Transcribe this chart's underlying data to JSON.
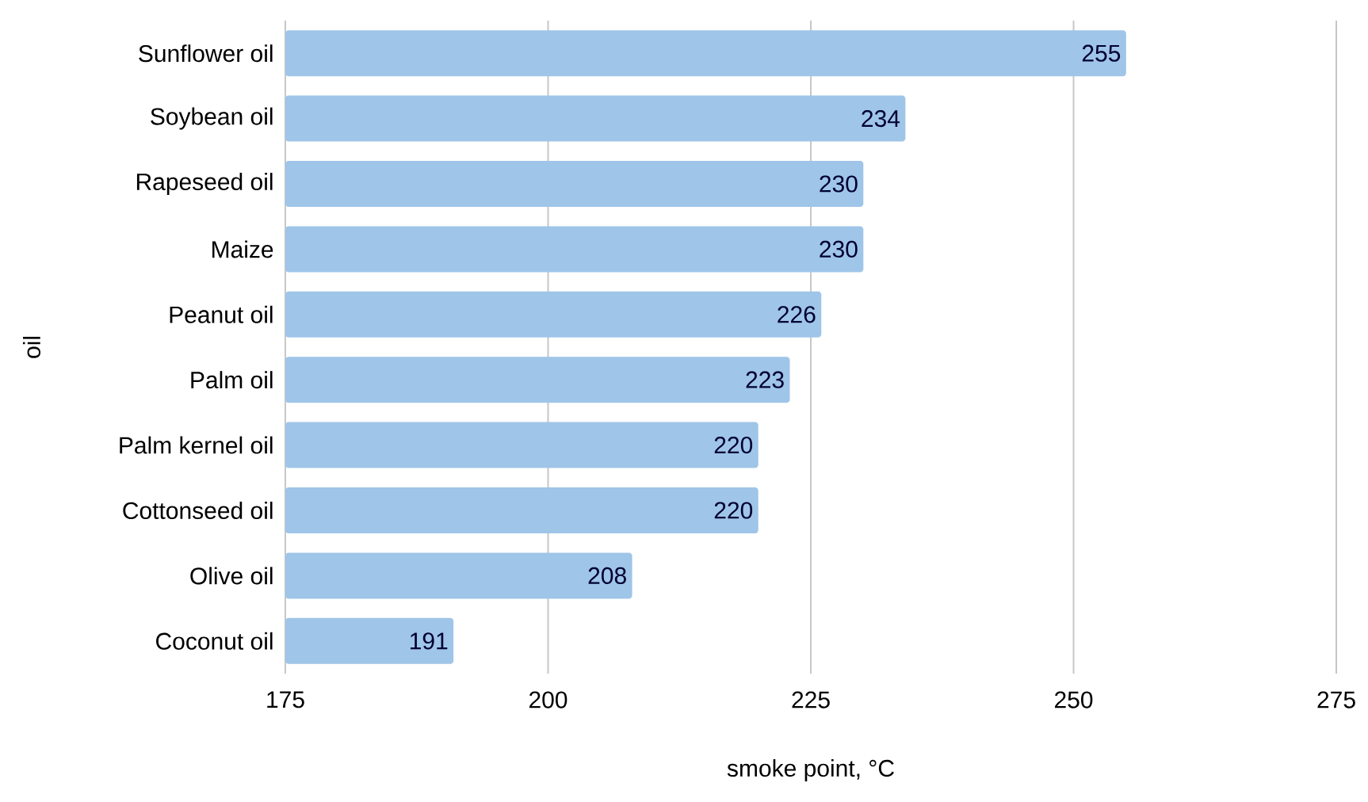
{
  "chart_data": {
    "type": "bar",
    "orientation": "horizontal",
    "xlabel": "smoke point, °C",
    "ylabel": "oil",
    "categories": [
      "Sunflower oil",
      "Soybean oil",
      "Rapeseed oil",
      "Maize",
      "Peanut oil",
      "Palm oil",
      "Palm kernel oil",
      "Cottonseed oil",
      "Olive oil",
      "Coconut oil"
    ],
    "values": [
      255,
      234,
      230,
      230,
      226,
      223,
      220,
      220,
      208,
      191
    ],
    "color": "#9fc5e8",
    "xlim": [
      175,
      275
    ],
    "xticks": [
      175,
      200,
      225,
      250,
      275
    ],
    "grid": "x",
    "data_labels": true
  }
}
